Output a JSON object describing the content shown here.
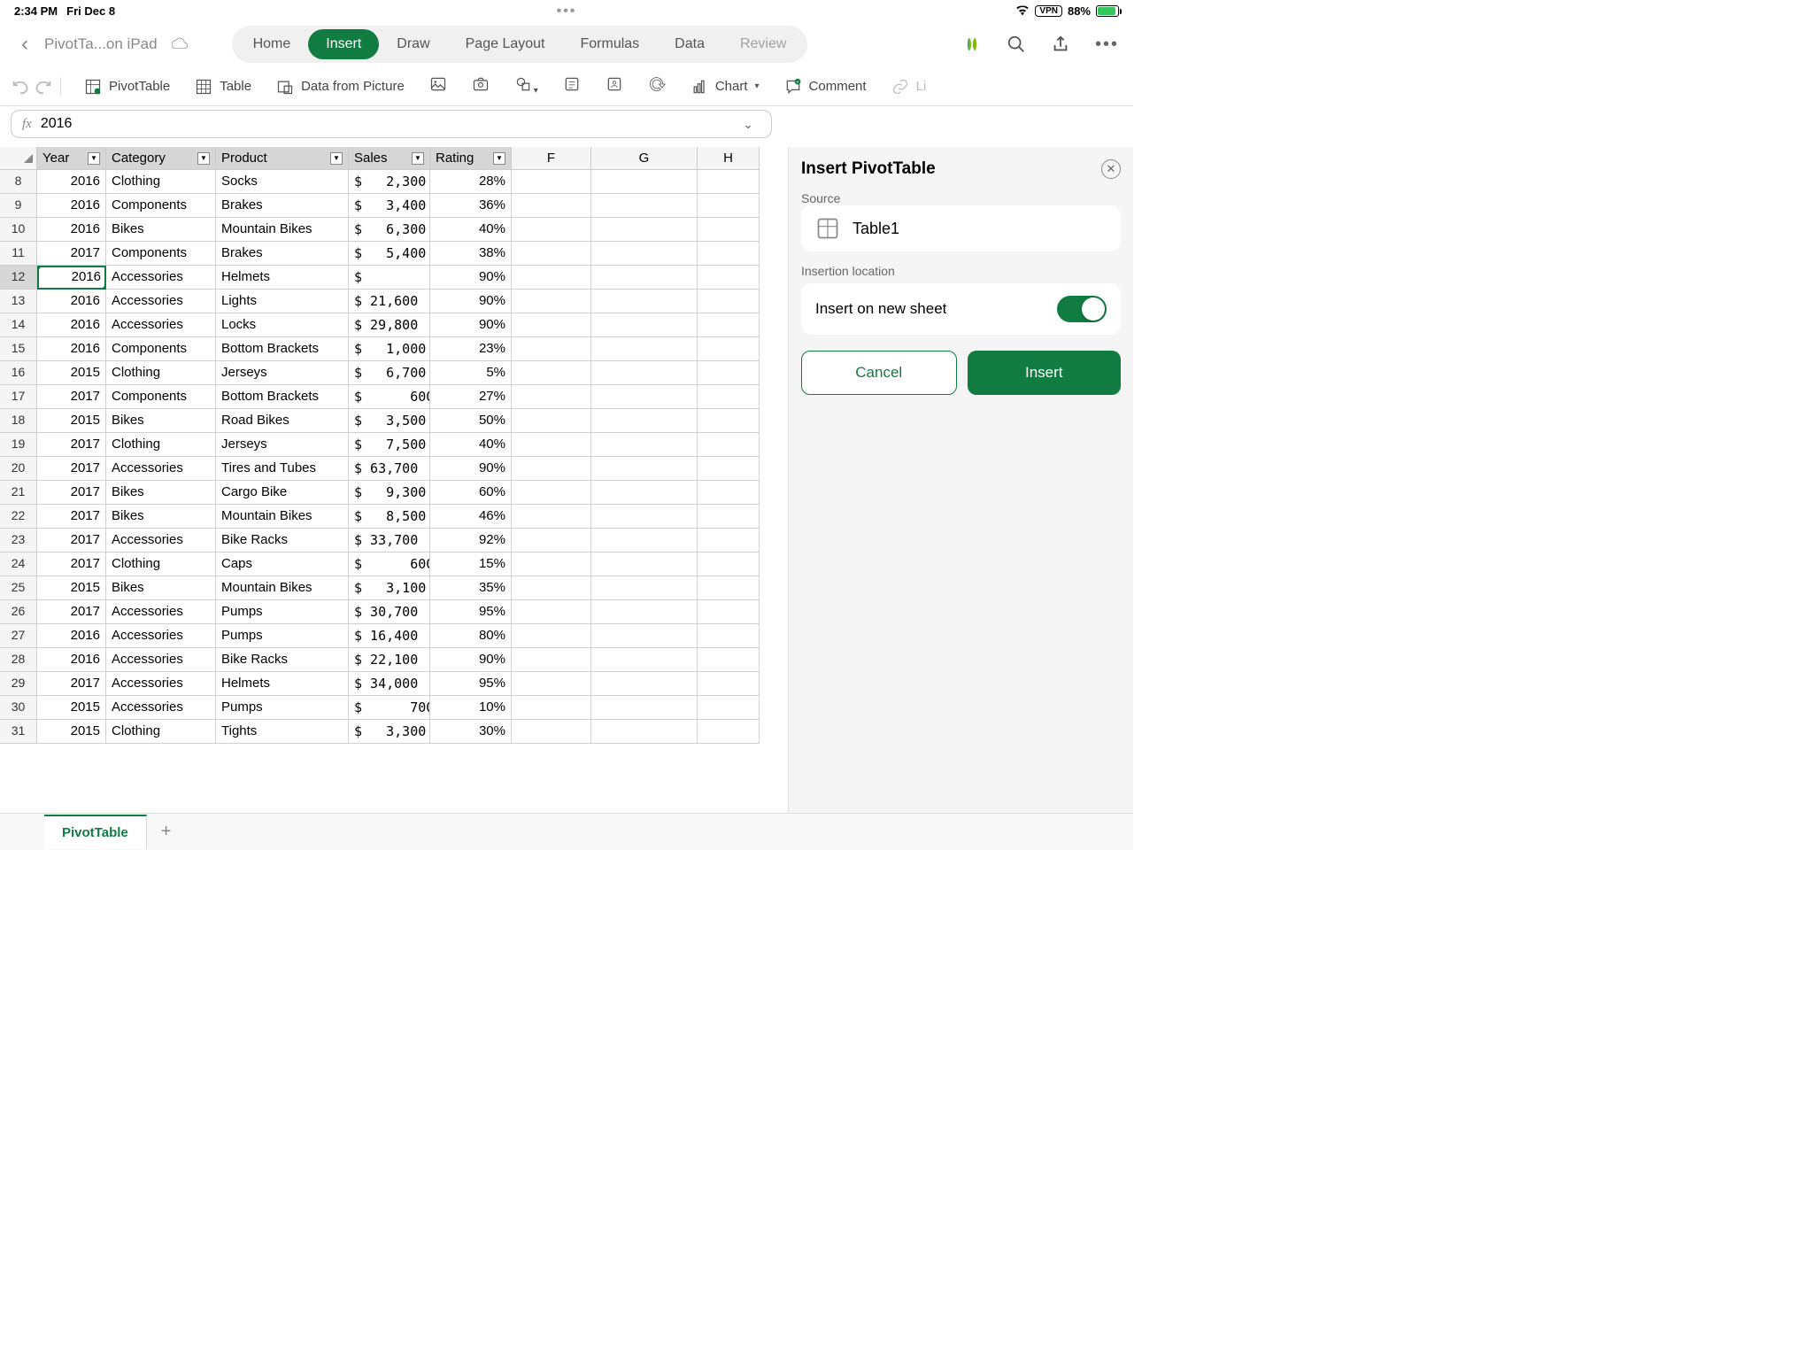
{
  "status": {
    "time": "2:34 PM",
    "date": "Fri Dec 8",
    "vpn": "VPN",
    "battery_pct": "88%"
  },
  "doc": {
    "title": "PivotTa...on iPad"
  },
  "tabs": {
    "home": "Home",
    "insert": "Insert",
    "draw": "Draw",
    "page_layout": "Page Layout",
    "formulas": "Formulas",
    "data": "Data",
    "review": "Review"
  },
  "ribbon": {
    "pivot_table": "PivotTable",
    "table": "Table",
    "data_from_picture": "Data from Picture",
    "chart": "Chart",
    "comment": "Comment",
    "link": "Li"
  },
  "formula": {
    "fx": "fx",
    "value": "2016"
  },
  "columns": {
    "year": "Year",
    "category": "Category",
    "product": "Product",
    "sales": "Sales",
    "rating": "Rating",
    "f": "F",
    "g": "G",
    "h": "H"
  },
  "row_headers": [
    "8",
    "9",
    "10",
    "11",
    "12",
    "13",
    "14",
    "15",
    "16",
    "17",
    "18",
    "19",
    "20",
    "21",
    "22",
    "23",
    "24",
    "25",
    "26",
    "27",
    "28",
    "29",
    "30",
    "31"
  ],
  "rows": [
    {
      "year": "2016",
      "category": "Clothing",
      "product": "Socks",
      "sales": "$   2,300",
      "rating": "28%"
    },
    {
      "year": "2016",
      "category": "Components",
      "product": "Brakes",
      "sales": "$   3,400",
      "rating": "36%"
    },
    {
      "year": "2016",
      "category": "Bikes",
      "product": "Mountain Bikes",
      "sales": "$   6,300",
      "rating": "40%"
    },
    {
      "year": "2017",
      "category": "Components",
      "product": "Brakes",
      "sales": "$   5,400",
      "rating": "38%"
    },
    {
      "year": "2016",
      "category": "Accessories",
      "product": "Helmets",
      "sales": "$",
      "rating": "90%"
    },
    {
      "year": "2016",
      "category": "Accessories",
      "product": "Lights",
      "sales": "$ 21,600",
      "rating": "90%"
    },
    {
      "year": "2016",
      "category": "Accessories",
      "product": "Locks",
      "sales": "$ 29,800",
      "rating": "90%"
    },
    {
      "year": "2016",
      "category": "Components",
      "product": "Bottom Brackets",
      "sales": "$   1,000",
      "rating": "23%"
    },
    {
      "year": "2015",
      "category": "Clothing",
      "product": "Jerseys",
      "sales": "$   6,700",
      "rating": "5%"
    },
    {
      "year": "2017",
      "category": "Components",
      "product": "Bottom Brackets",
      "sales": "$      600",
      "rating": "27%"
    },
    {
      "year": "2015",
      "category": "Bikes",
      "product": "Road Bikes",
      "sales": "$   3,500",
      "rating": "50%"
    },
    {
      "year": "2017",
      "category": "Clothing",
      "product": "Jerseys",
      "sales": "$   7,500",
      "rating": "40%"
    },
    {
      "year": "2017",
      "category": "Accessories",
      "product": "Tires and Tubes",
      "sales": "$ 63,700",
      "rating": "90%"
    },
    {
      "year": "2017",
      "category": "Bikes",
      "product": "Cargo Bike",
      "sales": "$   9,300",
      "rating": "60%"
    },
    {
      "year": "2017",
      "category": "Bikes",
      "product": "Mountain Bikes",
      "sales": "$   8,500",
      "rating": "46%"
    },
    {
      "year": "2017",
      "category": "Accessories",
      "product": "Bike Racks",
      "sales": "$ 33,700",
      "rating": "92%"
    },
    {
      "year": "2017",
      "category": "Clothing",
      "product": "Caps",
      "sales": "$      600",
      "rating": "15%"
    },
    {
      "year": "2015",
      "category": "Bikes",
      "product": "Mountain Bikes",
      "sales": "$   3,100",
      "rating": "35%"
    },
    {
      "year": "2017",
      "category": "Accessories",
      "product": "Pumps",
      "sales": "$ 30,700",
      "rating": "95%"
    },
    {
      "year": "2016",
      "category": "Accessories",
      "product": "Pumps",
      "sales": "$ 16,400",
      "rating": "80%"
    },
    {
      "year": "2016",
      "category": "Accessories",
      "product": "Bike Racks",
      "sales": "$ 22,100",
      "rating": "90%"
    },
    {
      "year": "2017",
      "category": "Accessories",
      "product": "Helmets",
      "sales": "$ 34,000",
      "rating": "95%"
    },
    {
      "year": "2015",
      "category": "Accessories",
      "product": "Pumps",
      "sales": "$      700",
      "rating": "10%"
    },
    {
      "year": "2015",
      "category": "Clothing",
      "product": "Tights",
      "sales": "$   3,300",
      "rating": "30%"
    }
  ],
  "panel": {
    "title": "Insert PivotTable",
    "source_label": "Source",
    "source_name": "Table1",
    "location_label": "Insertion location",
    "toggle_label": "Insert on new sheet",
    "cancel": "Cancel",
    "insert": "Insert"
  },
  "sheet_tab": {
    "name": "PivotTable"
  },
  "colors": {
    "accent": "#107c41",
    "banded": "#c5e6f2",
    "panel_bg": "#f5f5f5"
  }
}
